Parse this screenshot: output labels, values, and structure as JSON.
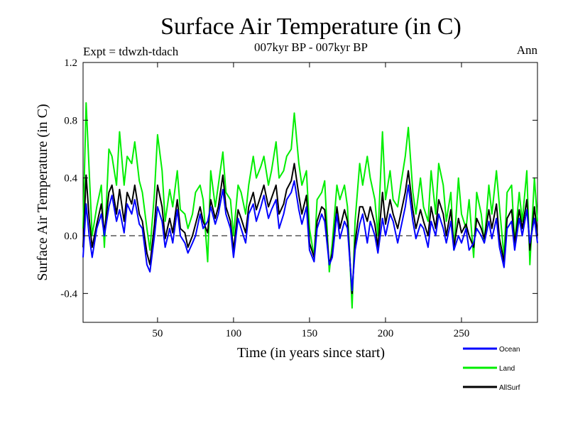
{
  "chart_data": {
    "type": "line",
    "title": "Surface Air Temperature (in C)",
    "subtitle": "007kyr BP - 007kyr BP",
    "experiment_label": "Expt = tdwzh-tdach",
    "season_label": "Ann",
    "xlabel": "Time (in years since start)",
    "ylabel": "Surface Air Temperature (in C)",
    "xlim": [
      1,
      300
    ],
    "ylim": [
      -0.6,
      1.2
    ],
    "xticks": [
      50,
      100,
      150,
      200,
      250
    ],
    "yticks": [
      -0.4,
      0.0,
      0.4,
      0.8,
      1.2
    ],
    "ytick_labels": [
      "-0.4",
      "0.0",
      "0.4",
      "0.8",
      "1.2"
    ],
    "reference_line": 0.0,
    "legend_position": "bottom-right",
    "anchors_x": [
      1,
      3,
      5,
      7,
      10,
      13,
      15,
      18,
      20,
      23,
      25,
      28,
      30,
      33,
      35,
      38,
      40,
      43,
      45,
      48,
      50,
      53,
      55,
      58,
      60,
      63,
      65,
      68,
      70,
      73,
      75,
      78,
      80,
      83,
      85,
      88,
      90,
      93,
      95,
      98,
      100,
      103,
      105,
      108,
      110,
      113,
      115,
      118,
      120,
      123,
      125,
      128,
      130,
      133,
      135,
      138,
      140,
      143,
      145,
      148,
      150,
      153,
      155,
      158,
      160,
      163,
      165,
      168,
      170,
      173,
      175,
      178,
      180,
      183,
      185,
      188,
      190,
      193,
      195,
      198,
      200,
      203,
      205,
      208,
      210,
      213,
      215,
      218,
      220,
      223,
      225,
      228,
      230,
      233,
      235,
      238,
      240,
      243,
      245,
      248,
      250,
      253,
      255,
      258,
      260,
      263,
      265,
      268,
      270,
      273,
      275,
      278,
      280,
      283,
      285,
      288,
      290,
      293,
      295,
      298,
      300
    ],
    "series": [
      {
        "name": "Ocean",
        "color": "#0000ff",
        "anchors": [
          -0.15,
          0.22,
          0.0,
          -0.15,
          0.05,
          0.15,
          0.0,
          0.2,
          0.28,
          0.1,
          0.18,
          0.02,
          0.22,
          0.15,
          0.25,
          0.08,
          0.05,
          -0.2,
          -0.25,
          0.0,
          0.2,
          0.1,
          -0.08,
          0.05,
          -0.05,
          0.18,
          0.0,
          -0.05,
          -0.12,
          -0.05,
          0.0,
          0.15,
          0.05,
          0.1,
          0.2,
          0.08,
          0.15,
          0.32,
          0.15,
          0.05,
          -0.15,
          0.12,
          0.05,
          -0.05,
          0.15,
          0.22,
          0.1,
          0.2,
          0.28,
          0.12,
          0.18,
          0.25,
          0.05,
          0.15,
          0.25,
          0.3,
          0.38,
          0.18,
          0.08,
          0.2,
          -0.1,
          -0.18,
          0.05,
          0.15,
          0.1,
          -0.2,
          -0.15,
          0.15,
          -0.02,
          0.1,
          0.05,
          -0.38,
          -0.1,
          0.08,
          0.15,
          -0.05,
          0.1,
          0.0,
          -0.12,
          0.12,
          0.0,
          0.15,
          0.1,
          -0.05,
          0.05,
          0.2,
          0.35,
          0.1,
          -0.02,
          0.08,
          0.05,
          -0.08,
          0.1,
          0.0,
          0.15,
          0.05,
          -0.05,
          0.1,
          -0.1,
          0.0,
          -0.05,
          0.05,
          -0.1,
          -0.05,
          0.05,
          0.0,
          -0.05,
          0.1,
          -0.02,
          0.12,
          -0.08,
          -0.22,
          0.05,
          0.1,
          -0.1,
          0.12,
          0.0,
          0.18,
          -0.05,
          0.12,
          -0.05
        ]
      },
      {
        "name": "Land",
        "color": "#00ee00",
        "anchors": [
          0.05,
          0.92,
          0.45,
          0.0,
          0.2,
          0.35,
          -0.08,
          0.6,
          0.55,
          0.35,
          0.72,
          0.35,
          0.55,
          0.5,
          0.65,
          0.38,
          0.3,
          0.05,
          -0.1,
          0.3,
          0.7,
          0.45,
          0.1,
          0.32,
          0.2,
          0.45,
          0.18,
          0.15,
          0.05,
          0.15,
          0.3,
          0.35,
          0.25,
          -0.18,
          0.45,
          0.2,
          0.35,
          0.58,
          0.3,
          0.25,
          0.0,
          0.35,
          0.3,
          0.15,
          0.35,
          0.55,
          0.4,
          0.48,
          0.55,
          0.35,
          0.45,
          0.65,
          0.4,
          0.45,
          0.55,
          0.6,
          0.85,
          0.5,
          0.35,
          0.45,
          0.05,
          -0.15,
          0.25,
          0.3,
          0.38,
          -0.25,
          -0.05,
          0.35,
          0.25,
          0.35,
          0.2,
          -0.5,
          0.1,
          0.5,
          0.35,
          0.55,
          0.4,
          0.25,
          0.0,
          0.72,
          0.25,
          0.45,
          0.25,
          0.2,
          0.35,
          0.55,
          0.75,
          0.3,
          0.15,
          0.4,
          0.2,
          0.1,
          0.45,
          0.15,
          0.5,
          0.35,
          0.1,
          0.3,
          -0.1,
          0.4,
          0.15,
          0.05,
          0.25,
          -0.15,
          0.3,
          0.15,
          -0.05,
          0.35,
          0.15,
          0.45,
          0.2,
          -0.15,
          0.3,
          0.35,
          -0.05,
          0.3,
          0.1,
          0.45,
          -0.2,
          0.4,
          0.1
        ]
      },
      {
        "name": "AllSurf",
        "color": "#000000",
        "anchors": [
          -0.08,
          0.42,
          0.12,
          -0.08,
          0.08,
          0.22,
          0.02,
          0.3,
          0.35,
          0.15,
          0.32,
          0.1,
          0.3,
          0.22,
          0.35,
          0.15,
          0.1,
          -0.12,
          -0.2,
          0.08,
          0.35,
          0.2,
          -0.02,
          0.12,
          0.02,
          0.25,
          0.05,
          0.02,
          -0.08,
          0.0,
          0.08,
          0.2,
          0.1,
          0.02,
          0.25,
          0.12,
          0.2,
          0.42,
          0.2,
          0.1,
          -0.1,
          0.18,
          0.12,
          0.02,
          0.2,
          0.3,
          0.18,
          0.28,
          0.35,
          0.2,
          0.26,
          0.35,
          0.15,
          0.22,
          0.32,
          0.38,
          0.5,
          0.28,
          0.15,
          0.28,
          -0.05,
          -0.15,
          0.1,
          0.2,
          0.18,
          -0.2,
          -0.12,
          0.2,
          0.05,
          0.18,
          0.1,
          -0.4,
          -0.05,
          0.2,
          0.2,
          0.1,
          0.2,
          0.08,
          -0.08,
          0.3,
          0.08,
          0.25,
          0.15,
          0.05,
          0.15,
          0.3,
          0.45,
          0.18,
          0.05,
          0.18,
          0.1,
          0.0,
          0.2,
          0.05,
          0.25,
          0.15,
          0.0,
          0.18,
          -0.08,
          0.12,
          0.02,
          0.08,
          0.0,
          -0.08,
          0.12,
          0.05,
          -0.02,
          0.18,
          0.05,
          0.22,
          -0.02,
          -0.18,
          0.12,
          0.18,
          -0.05,
          0.18,
          0.05,
          0.25,
          -0.1,
          0.2,
          0.0
        ]
      }
    ]
  }
}
